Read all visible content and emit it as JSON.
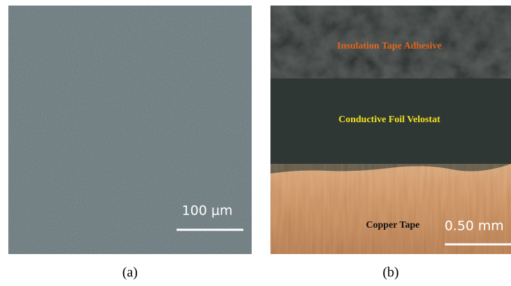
{
  "panels": [
    {
      "caption": "(a)",
      "scale_bar": "100 µm"
    },
    {
      "caption": "(b)",
      "scale_bar": "0.50 mm",
      "layers": [
        "Insulation Tape Adhesive",
        "Conductive Foil Velostat",
        "Copper Tape"
      ]
    }
  ]
}
